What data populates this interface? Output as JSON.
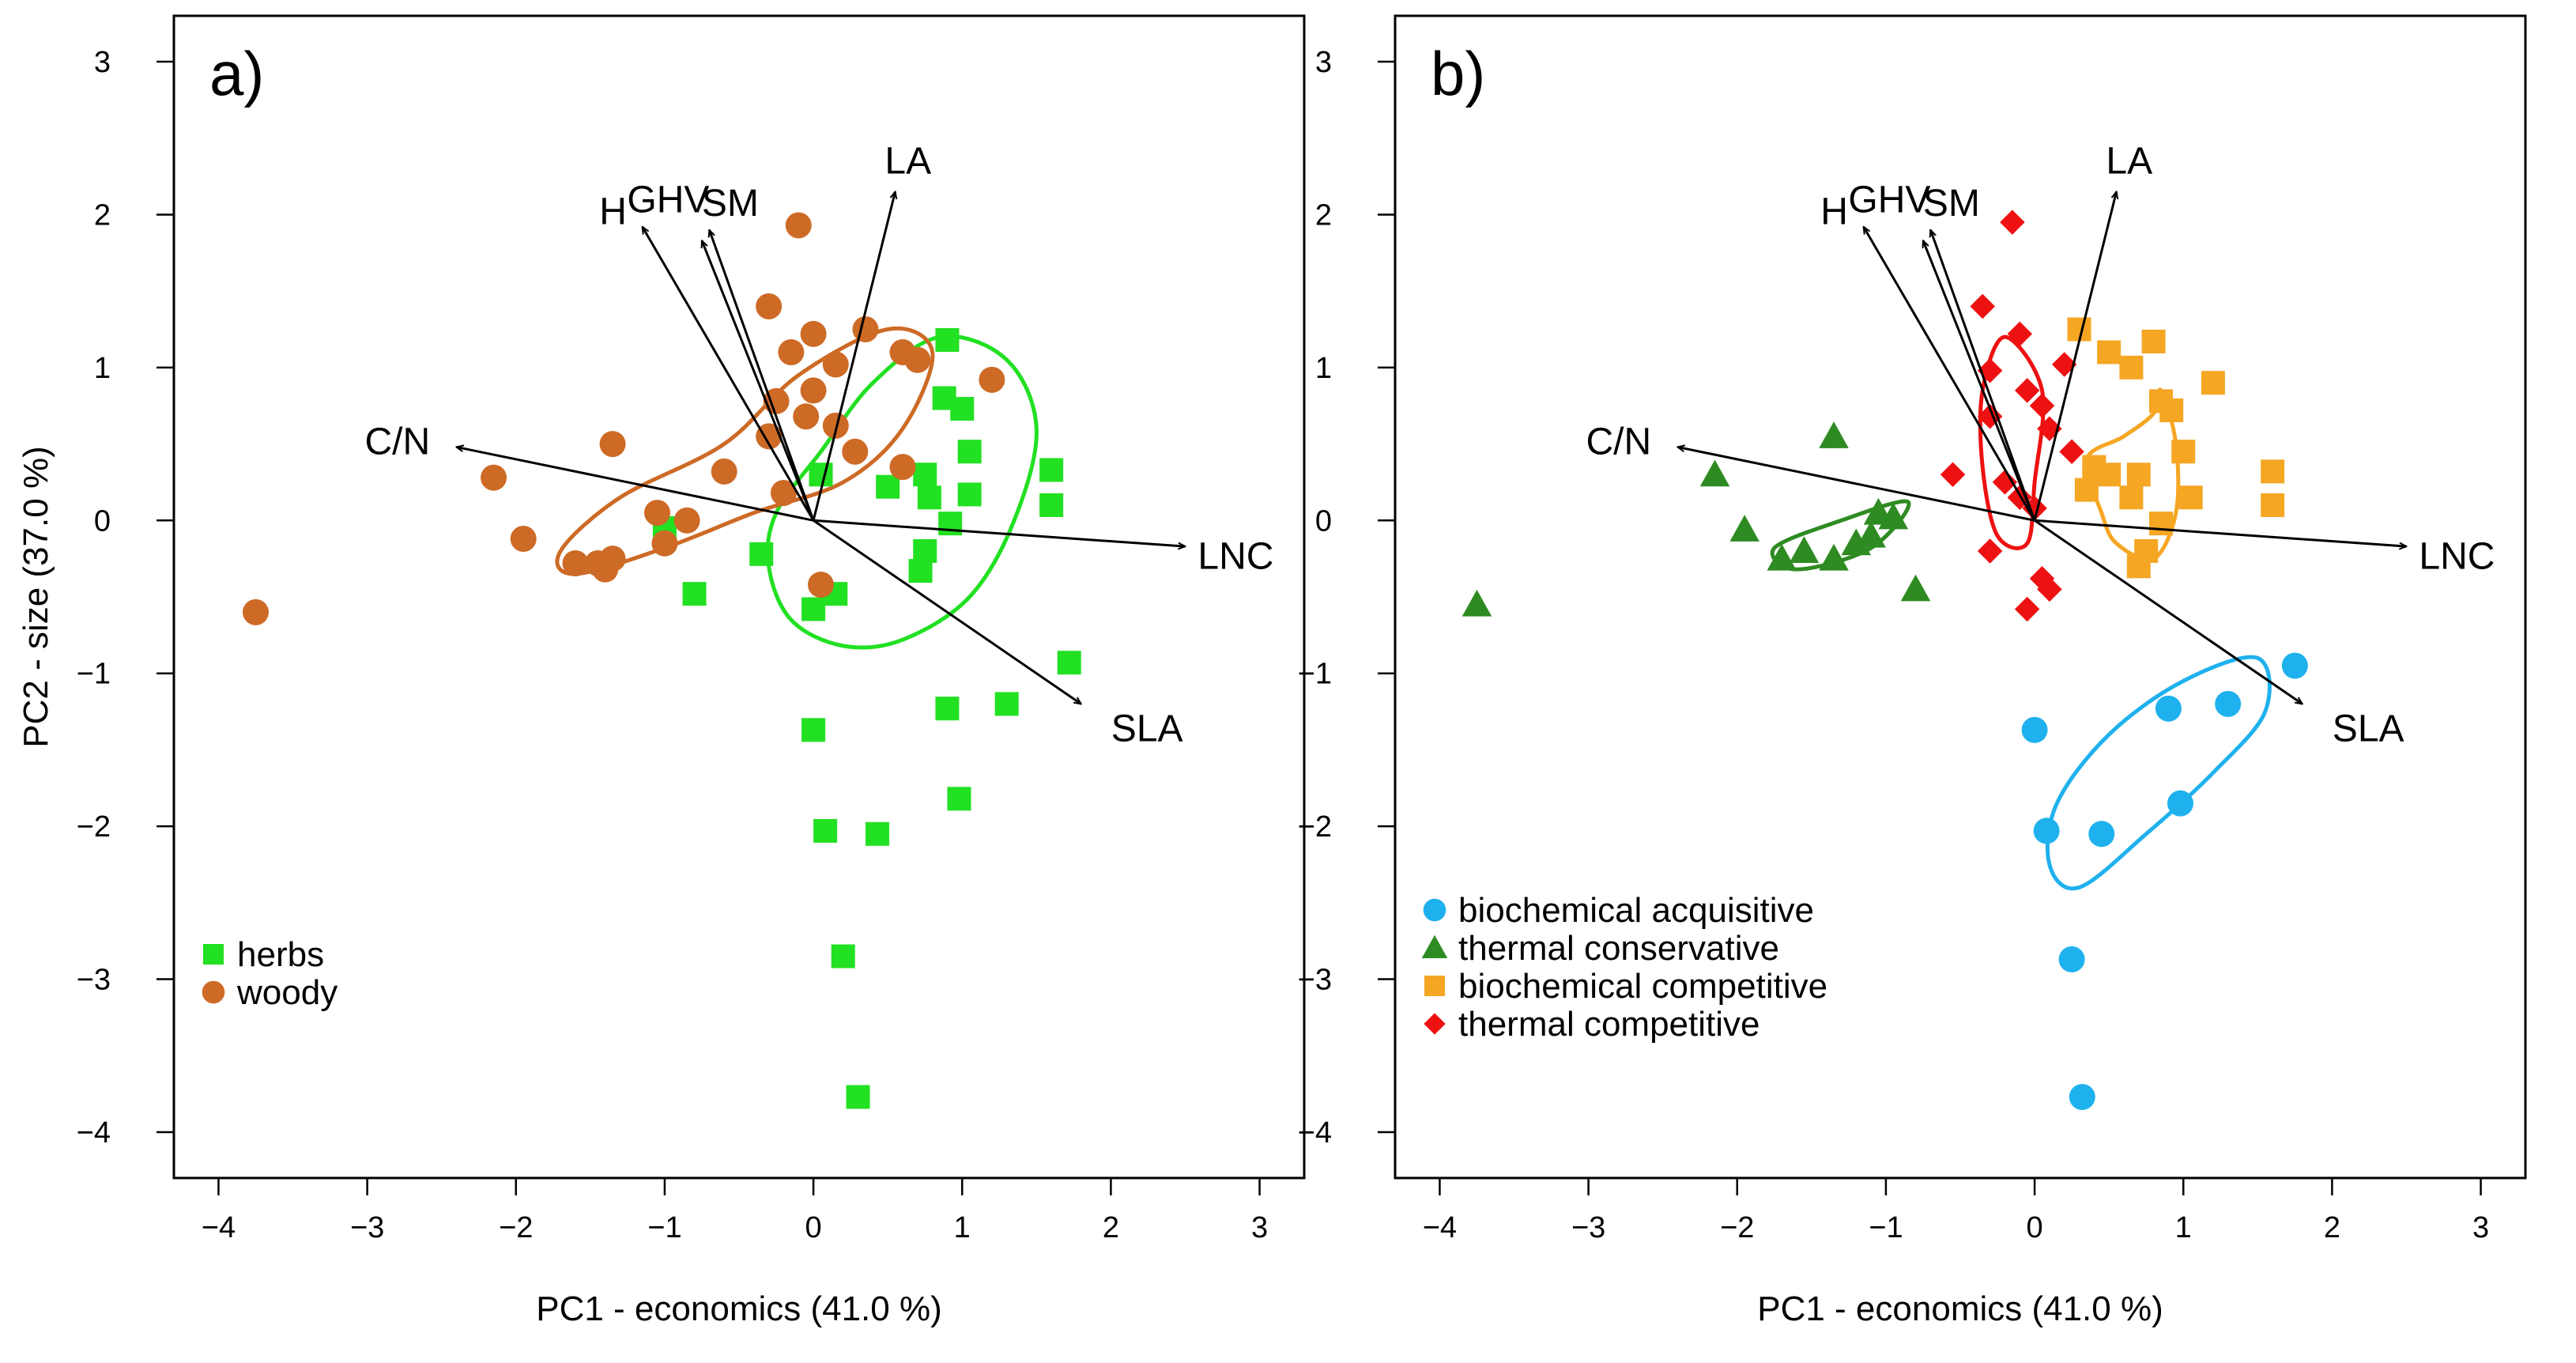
{
  "chart_data": [
    {
      "type": "scatter",
      "panel_label": "a)",
      "xlabel": "PC1 - economics (41.0 %)",
      "ylabel": "PC2 - size (37.0 %)",
      "xlim": [
        -4.3,
        3.3
      ],
      "ylim": [
        -4.3,
        3.3
      ],
      "x_ticks": [
        -4,
        -3,
        -2,
        -1,
        0,
        1,
        2,
        3
      ],
      "y_ticks": [
        -4,
        -3,
        -2,
        -1,
        0,
        1,
        2,
        3
      ],
      "grid": false,
      "legend_position": "bottom-left",
      "series": [
        {
          "name": "herbs",
          "color": "#22e022",
          "marker": "square",
          "points": [
            [
              0.9,
              1.18
            ],
            [
              0.88,
              0.8
            ],
            [
              1.0,
              0.73
            ],
            [
              1.05,
              0.45
            ],
            [
              0.05,
              0.3
            ],
            [
              0.5,
              0.22
            ],
            [
              0.75,
              0.3
            ],
            [
              0.78,
              0.15
            ],
            [
              1.05,
              0.17
            ],
            [
              1.6,
              0.33
            ],
            [
              1.6,
              0.1
            ],
            [
              -1.0,
              -0.05
            ],
            [
              -0.35,
              -0.22
            ],
            [
              0.92,
              -0.02
            ],
            [
              0.75,
              -0.2
            ],
            [
              0.72,
              -0.33
            ],
            [
              -0.8,
              -0.48
            ],
            [
              0.15,
              -0.48
            ],
            [
              0.0,
              -0.58
            ],
            [
              1.72,
              -0.93
            ],
            [
              0.0,
              -1.37
            ],
            [
              0.9,
              -1.23
            ],
            [
              1.3,
              -1.2
            ],
            [
              0.98,
              -1.82
            ],
            [
              0.08,
              -2.03
            ],
            [
              0.43,
              -2.05
            ],
            [
              0.2,
              -2.85
            ],
            [
              0.3,
              -3.77
            ]
          ]
        },
        {
          "name": "woody",
          "color": "#cd6a26",
          "marker": "circle",
          "points": [
            [
              -0.1,
              1.93
            ],
            [
              -0.3,
              1.4
            ],
            [
              0.35,
              1.25
            ],
            [
              0.0,
              1.22
            ],
            [
              0.6,
              1.1
            ],
            [
              0.7,
              1.05
            ],
            [
              -0.15,
              1.1
            ],
            [
              0.15,
              1.02
            ],
            [
              1.2,
              0.92
            ],
            [
              0.0,
              0.85
            ],
            [
              -0.25,
              0.78
            ],
            [
              -0.05,
              0.68
            ],
            [
              0.15,
              0.62
            ],
            [
              -0.3,
              0.55
            ],
            [
              -1.35,
              0.5
            ],
            [
              0.28,
              0.45
            ],
            [
              0.6,
              0.35
            ],
            [
              -2.15,
              0.28
            ],
            [
              -0.6,
              0.32
            ],
            [
              -0.2,
              0.18
            ],
            [
              -1.05,
              0.05
            ],
            [
              -0.85,
              0.0
            ],
            [
              -1.95,
              -0.12
            ],
            [
              -1.0,
              -0.15
            ],
            [
              -1.35,
              -0.25
            ],
            [
              -1.6,
              -0.28
            ],
            [
              -1.45,
              -0.28
            ],
            [
              -1.4,
              -0.32
            ],
            [
              0.05,
              -0.42
            ],
            [
              -3.75,
              -0.6
            ]
          ]
        }
      ],
      "ellipses": [
        {
          "group": "herbs",
          "color": "#22e022",
          "points": [
            [
              0.85,
              1.2
            ],
            [
              1.3,
              1.05
            ],
            [
              1.5,
              0.6
            ],
            [
              1.35,
              0.0
            ],
            [
              1.05,
              -0.5
            ],
            [
              0.6,
              -0.78
            ],
            [
              0.2,
              -0.82
            ],
            [
              -0.15,
              -0.65
            ],
            [
              -0.3,
              -0.3
            ],
            [
              -0.25,
              0.05
            ],
            [
              0.05,
              0.45
            ],
            [
              0.4,
              0.9
            ]
          ]
        },
        {
          "group": "woody",
          "color": "#cd6a26",
          "points": [
            [
              0.5,
              1.25
            ],
            [
              0.8,
              1.1
            ],
            [
              0.6,
              0.6
            ],
            [
              0.2,
              0.25
            ],
            [
              -0.4,
              0.05
            ],
            [
              -1.0,
              -0.18
            ],
            [
              -1.6,
              -0.35
            ],
            [
              -1.7,
              -0.2
            ],
            [
              -1.3,
              0.15
            ],
            [
              -0.6,
              0.5
            ],
            [
              -0.1,
              0.95
            ]
          ]
        }
      ],
      "vectors": [
        {
          "label": "LA",
          "x": 0.55,
          "y": 2.15
        },
        {
          "label": "GHV",
          "x": -0.75,
          "y": 1.83
        },
        {
          "label": "SM",
          "x": -0.7,
          "y": 1.9
        },
        {
          "label": "H",
          "x": -1.15,
          "y": 1.92
        },
        {
          "label": "C/N",
          "x": -2.4,
          "y": 0.48
        },
        {
          "label": "LNC",
          "x": 2.5,
          "y": -0.17
        },
        {
          "label": "SLA",
          "x": 1.8,
          "y": -1.2
        }
      ]
    },
    {
      "type": "scatter",
      "panel_label": "b)",
      "xlabel": "PC1 - economics (41.0 %)",
      "ylabel": "",
      "xlim": [
        -4.3,
        3.3
      ],
      "ylim": [
        -4.3,
        3.3
      ],
      "x_ticks": [
        -4,
        -3,
        -2,
        -1,
        0,
        1,
        2,
        3
      ],
      "y_ticks": [
        -4,
        -3,
        -2,
        -1,
        0,
        1,
        2,
        3
      ],
      "grid": false,
      "legend_position": "bottom-left",
      "series": [
        {
          "name": "biochemical acquisitive",
          "color": "#1fb1ee",
          "marker": "circle",
          "points": [
            [
              1.75,
              -0.95
            ],
            [
              0.0,
              -1.37
            ],
            [
              0.9,
              -1.23
            ],
            [
              1.3,
              -1.2
            ],
            [
              0.98,
              -1.85
            ],
            [
              0.08,
              -2.03
            ],
            [
              0.45,
              -2.05
            ],
            [
              0.25,
              -2.87
            ],
            [
              0.32,
              -3.77
            ]
          ]
        },
        {
          "name": "thermal conservative",
          "color": "#2e8b22",
          "marker": "triangle",
          "points": [
            [
              -1.35,
              0.55
            ],
            [
              -2.15,
              0.3
            ],
            [
              -1.95,
              -0.06
            ],
            [
              -1.05,
              0.05
            ],
            [
              -0.95,
              0.02
            ],
            [
              -1.1,
              -0.1
            ],
            [
              -1.2,
              -0.15
            ],
            [
              -1.55,
              -0.2
            ],
            [
              -1.7,
              -0.25
            ],
            [
              -1.35,
              -0.25
            ],
            [
              -0.8,
              -0.45
            ],
            [
              -3.75,
              -0.55
            ]
          ]
        },
        {
          "name": "biochemical competitive",
          "color": "#f5a623",
          "marker": "square",
          "points": [
            [
              0.3,
              1.25
            ],
            [
              0.5,
              1.1
            ],
            [
              0.8,
              1.17
            ],
            [
              0.65,
              1.0
            ],
            [
              0.85,
              0.78
            ],
            [
              0.92,
              0.72
            ],
            [
              1.2,
              0.9
            ],
            [
              1.0,
              0.45
            ],
            [
              0.4,
              0.35
            ],
            [
              0.5,
              0.3
            ],
            [
              0.7,
              0.3
            ],
            [
              0.35,
              0.2
            ],
            [
              0.65,
              0.15
            ],
            [
              1.05,
              0.15
            ],
            [
              1.6,
              0.32
            ],
            [
              1.6,
              0.1
            ],
            [
              0.85,
              -0.02
            ],
            [
              0.75,
              -0.2
            ],
            [
              0.7,
              -0.3
            ]
          ]
        },
        {
          "name": "thermal competitive",
          "color": "#ee1111",
          "marker": "diamond",
          "points": [
            [
              -0.15,
              1.95
            ],
            [
              -0.35,
              1.4
            ],
            [
              -0.1,
              1.22
            ],
            [
              0.2,
              1.02
            ],
            [
              -0.3,
              0.98
            ],
            [
              -0.05,
              0.85
            ],
            [
              0.05,
              0.75
            ],
            [
              -0.3,
              0.68
            ],
            [
              0.1,
              0.6
            ],
            [
              0.25,
              0.45
            ],
            [
              -0.55,
              0.3
            ],
            [
              -0.2,
              0.25
            ],
            [
              -0.1,
              0.15
            ],
            [
              0.0,
              0.08
            ],
            [
              -0.3,
              -0.2
            ],
            [
              0.05,
              -0.38
            ],
            [
              0.1,
              -0.45
            ],
            [
              -0.05,
              -0.58
            ]
          ]
        }
      ],
      "ellipses": [
        {
          "group": "biochemical acquisitive",
          "color": "#1fb1ee",
          "points": [
            [
              1.5,
              -0.9
            ],
            [
              1.55,
              -1.25
            ],
            [
              1.2,
              -1.65
            ],
            [
              0.75,
              -2.05
            ],
            [
              0.3,
              -2.4
            ],
            [
              0.1,
              -2.25
            ],
            [
              0.15,
              -1.85
            ],
            [
              0.5,
              -1.4
            ],
            [
              1.0,
              -1.05
            ]
          ]
        },
        {
          "group": "thermal conservative",
          "color": "#2e8b22",
          "points": [
            [
              -0.85,
              0.12
            ],
            [
              -1.3,
              0.0
            ],
            [
              -1.75,
              -0.18
            ],
            [
              -1.6,
              -0.32
            ],
            [
              -1.1,
              -0.18
            ]
          ]
        },
        {
          "group": "biochemical competitive",
          "color": "#f5a623",
          "points": [
            [
              0.85,
              0.85
            ],
            [
              0.95,
              0.5
            ],
            [
              0.95,
              0.05
            ],
            [
              0.8,
              -0.25
            ],
            [
              0.55,
              -0.15
            ],
            [
              0.45,
              0.05
            ],
            [
              0.35,
              0.4
            ],
            [
              0.6,
              0.55
            ],
            [
              0.8,
              0.7
            ]
          ]
        },
        {
          "group": "thermal competitive",
          "color": "#ee1111",
          "points": [
            [
              -0.2,
              1.2
            ],
            [
              0.05,
              0.85
            ],
            [
              0.0,
              0.25
            ],
            [
              -0.05,
              -0.15
            ],
            [
              -0.25,
              -0.1
            ],
            [
              -0.35,
              0.35
            ],
            [
              -0.35,
              0.85
            ]
          ]
        }
      ],
      "vectors": [
        {
          "label": "LA",
          "x": 0.55,
          "y": 2.15
        },
        {
          "label": "GHV",
          "x": -0.75,
          "y": 1.83
        },
        {
          "label": "SM",
          "x": -0.7,
          "y": 1.9
        },
        {
          "label": "H",
          "x": -1.15,
          "y": 1.92
        },
        {
          "label": "C/N",
          "x": -2.4,
          "y": 0.48
        },
        {
          "label": "LNC",
          "x": 2.5,
          "y": -0.17
        },
        {
          "label": "SLA",
          "x": 1.8,
          "y": -1.2
        }
      ]
    }
  ]
}
